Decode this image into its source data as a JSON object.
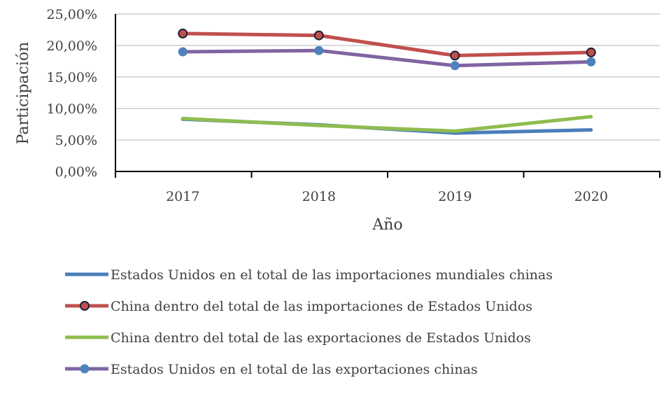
{
  "chart_data": {
    "type": "line",
    "title": "",
    "xlabel": "Año",
    "ylabel": "Participación",
    "categories": [
      "2017",
      "2018",
      "2019",
      "2020"
    ],
    "ylim": [
      0,
      25
    ],
    "yticks": [
      "0,00%",
      "5,00%",
      "10,00%",
      "15,00%",
      "20,00%",
      "25,00%"
    ],
    "grid": true,
    "legend_position": "bottom",
    "series": [
      {
        "name": "Estados Unidos en el total de las importaciones mundiales chinas",
        "values": [
          8.3,
          7.4,
          6.1,
          6.6
        ],
        "color": "#4a7ebb",
        "markers": false
      },
      {
        "name": "China dentro del total de las importaciones de Estados Unidos",
        "values": [
          21.9,
          21.6,
          18.4,
          18.9
        ],
        "color": "#c0504d",
        "markers": true
      },
      {
        "name": "China dentro del total de las exportaciones de Estados Unidos",
        "values": [
          8.4,
          7.3,
          6.4,
          8.7
        ],
        "color": "#8fbc4f",
        "markers": false
      },
      {
        "name": "Estados Unidos en el total de las exportaciones chinas",
        "values": [
          19.0,
          19.2,
          16.8,
          17.4
        ],
        "color": "#8064a2",
        "markers": true,
        "marker_color": "#4f81bd"
      }
    ]
  }
}
